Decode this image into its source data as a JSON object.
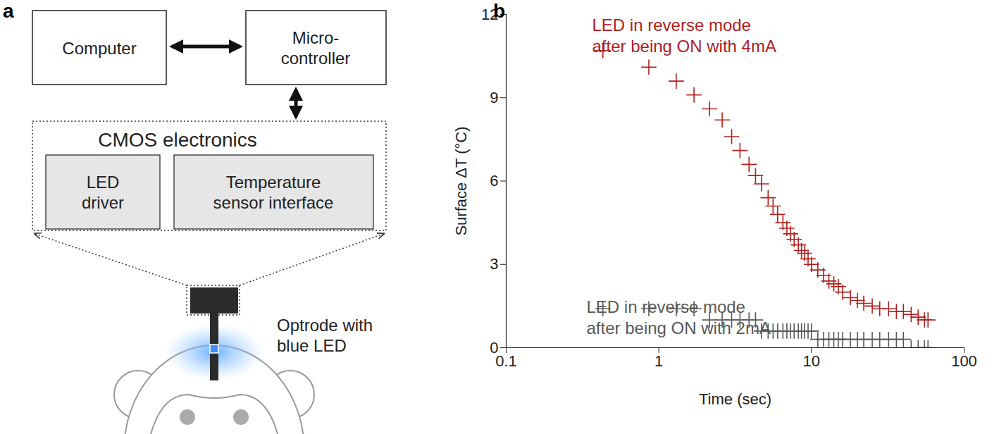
{
  "panels": [
    "a",
    "b"
  ],
  "diagram": {
    "nodes": [
      {
        "label": [
          "Computer"
        ]
      },
      {
        "label": [
          "Micro-",
          "controller"
        ]
      },
      {
        "label": [
          "CMOS electronics"
        ]
      },
      {
        "label": [
          "LED",
          "driver"
        ]
      },
      {
        "label": [
          "Temperature",
          "sensor interface"
        ]
      },
      {
        "label": [
          "Optrode with",
          "blue LED"
        ]
      }
    ]
  },
  "chart_data": {
    "type": "scatter",
    "xlabel": "Time (sec)",
    "ylabel": "Surface ΔT (°C)",
    "log": "x",
    "xlim": [
      0.1,
      100
    ],
    "xticks": [
      0.1,
      1,
      10,
      100
    ],
    "ylim": [
      0,
      12
    ],
    "yticks": [
      0,
      3,
      6,
      9,
      12
    ],
    "marker": "plus",
    "series": [
      {
        "label": [
          "LED in reverse mode",
          "after being ON with 4mA"
        ],
        "color": "#b0201e",
        "x": [
          0.43,
          0.86,
          1.3,
          1.7,
          2.15,
          2.6,
          3.0,
          3.4,
          3.9,
          4.3,
          4.7,
          5.2,
          5.6,
          6.0,
          6.5,
          6.9,
          7.3,
          7.7,
          8.2,
          8.6,
          9.0,
          9.5,
          10,
          11,
          12,
          13,
          14,
          15,
          16,
          18,
          20,
          22,
          25,
          28,
          32,
          36,
          40,
          45,
          50,
          55,
          58
        ],
        "values": [
          10.7,
          10.1,
          9.6,
          9.1,
          8.6,
          8.2,
          7.6,
          7.1,
          6.6,
          6.2,
          5.9,
          5.4,
          5.1,
          4.8,
          4.5,
          4.3,
          4.1,
          3.9,
          3.7,
          3.5,
          3.4,
          3.2,
          3.0,
          2.8,
          2.6,
          2.4,
          2.3,
          2.2,
          2.0,
          1.8,
          1.7,
          1.6,
          1.5,
          1.4,
          1.4,
          1.3,
          1.3,
          1.2,
          1.1,
          1.0,
          1.0
        ]
      },
      {
        "label": [
          "LED in reverse mode",
          "after being ON with 2mA"
        ],
        "color": "#595959",
        "x": [
          0.43,
          0.86,
          1.3,
          1.7,
          2.15,
          2.6,
          3.0,
          3.4,
          3.9,
          4.3,
          4.7,
          5.2,
          5.6,
          6.0,
          6.5,
          6.9,
          7.3,
          7.7,
          8.2,
          8.6,
          9.0,
          9.5,
          10,
          11,
          12,
          13,
          14,
          15,
          16,
          18,
          20,
          22,
          25,
          28,
          32,
          36,
          40,
          45,
          50,
          55,
          58
        ],
        "values": [
          1.4,
          1.4,
          1.4,
          1.4,
          1.0,
          1.0,
          1.0,
          1.0,
          1.0,
          1.0,
          0.6,
          0.6,
          0.6,
          0.6,
          0.6,
          0.6,
          0.6,
          0.6,
          0.6,
          0.6,
          0.6,
          0.6,
          0.6,
          0.3,
          0.3,
          0.3,
          0.3,
          0.3,
          0.3,
          0.3,
          0.3,
          0.3,
          0.3,
          0.3,
          0.3,
          0.3,
          0.3,
          0.0,
          0.0,
          0.0,
          0.0
        ]
      }
    ]
  }
}
